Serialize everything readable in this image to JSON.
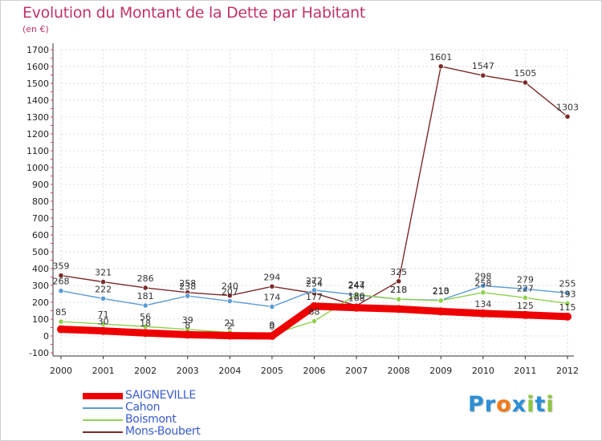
{
  "header": {
    "title": "Evolution du Montant de la Dette par Habitant",
    "subtitle": "(en €)"
  },
  "logo": {
    "text": "Proxiti",
    "letters": [
      {
        "ch": "P",
        "color": "#2b8fd6"
      },
      {
        "ch": "r",
        "color": "#2b8fd6"
      },
      {
        "ch": "o",
        "color": "#f07a1a"
      },
      {
        "ch": "x",
        "color": "#2b8fd6"
      },
      {
        "ch": "i",
        "color": "#8cc63f"
      },
      {
        "ch": "t",
        "color": "#2b8fd6"
      },
      {
        "ch": "i",
        "color": "#8cc63f"
      }
    ]
  },
  "chart_data": {
    "type": "line",
    "title": "Evolution du Montant de la Dette par Habitant",
    "subtitle": "(en €)",
    "xlabel": "",
    "ylabel": "",
    "x": [
      "2000",
      "2001",
      "2002",
      "2003",
      "2004",
      "2005",
      "2006",
      "2007",
      "2008",
      "2009",
      "2010",
      "2011",
      "2012"
    ],
    "ylim": [
      -100,
      1700
    ],
    "yticks": [
      "-100",
      "0",
      "100",
      "200",
      "300",
      "400",
      "500",
      "600",
      "700",
      "800",
      "900",
      "1000",
      "1100",
      "1200",
      "1300",
      "1400",
      "1500",
      "1600",
      "1700"
    ],
    "grid": true,
    "legend_position": "bottom-left",
    "series": [
      {
        "name": "SAIGNEVILLE",
        "color": "#ee0000",
        "values": [
          40,
          30,
          18,
          8,
          2,
          0,
          177,
          168,
          160,
          146,
          134,
          125,
          115
        ],
        "labels": [
          "",
          "30",
          "18",
          "8",
          "2",
          "0",
          "177",
          "168",
          "",
          "",
          "134",
          "125",
          "115"
        ]
      },
      {
        "name": "Cahon",
        "color": "#5b9bd5",
        "values": [
          268,
          222,
          181,
          238,
          207,
          174,
          272,
          244,
          218,
          213,
          298,
          279,
          255
        ],
        "labels": [
          "268",
          "222",
          "181",
          "238",
          "207",
          "174",
          "272",
          "244",
          "218",
          "213",
          "298",
          "279",
          "255"
        ]
      },
      {
        "name": "Boismont",
        "color": "#8fd14f",
        "values": [
          85,
          71,
          56,
          39,
          21,
          9,
          88,
          247,
          218,
          210,
          258,
          227,
          193
        ],
        "labels": [
          "85",
          "71",
          "56",
          "39",
          "21",
          "9",
          "88",
          "247",
          "218",
          "210",
          "258",
          "227",
          "193"
        ]
      },
      {
        "name": "Mons-Boubert",
        "color": "#7b2a2a",
        "values": [
          359,
          321,
          286,
          258,
          240,
          294,
          254,
          180,
          325,
          1601,
          1547,
          1505,
          1303
        ],
        "labels": [
          "359",
          "321",
          "286",
          "258",
          "240",
          "294",
          "254",
          "180",
          "325",
          "1601",
          "1547",
          "1505",
          "1303"
        ]
      }
    ]
  }
}
